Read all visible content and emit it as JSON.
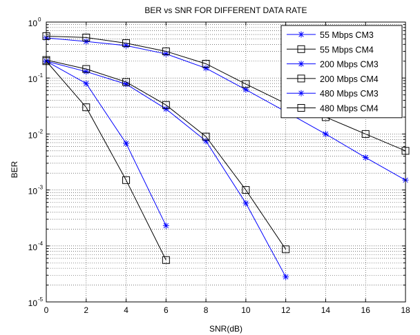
{
  "chart_data": {
    "type": "line",
    "title": "BER vs SNR FOR DIFFERENT DATA RATE",
    "xlabel": "SNR(dB)",
    "ylabel": "BER",
    "xlim": [
      0,
      18
    ],
    "ylim": [
      1e-05,
      1
    ],
    "yscale": "log",
    "grid": true,
    "legend_position": "top-right",
    "x_ticks": [
      0,
      2,
      4,
      6,
      8,
      10,
      12,
      14,
      16,
      18
    ],
    "y_ticks": [
      {
        "base": "10",
        "exp": "-5",
        "value": 1e-05
      },
      {
        "base": "10",
        "exp": "-4",
        "value": 0.0001
      },
      {
        "base": "10",
        "exp": "-3",
        "value": 0.001
      },
      {
        "base": "10",
        "exp": "-2",
        "value": 0.01
      },
      {
        "base": "10",
        "exp": "-1",
        "value": 0.1
      },
      {
        "base": "10",
        "exp": "0",
        "value": 1
      }
    ],
    "series": [
      {
        "name": "55 Mbps CM3",
        "color": "#0000ff",
        "marker": "star",
        "x": [
          0,
          2,
          4,
          6,
          8,
          10,
          12,
          14,
          16,
          18
        ],
        "y": [
          0.52,
          0.45,
          0.38,
          0.27,
          0.15,
          0.062,
          0.025,
          0.01,
          0.0038,
          0.0015
        ]
      },
      {
        "name": "55 Mbps CM4",
        "color": "#000000",
        "marker": "square",
        "x": [
          0,
          2,
          4,
          6,
          8,
          10,
          12,
          14,
          16,
          18
        ],
        "y": [
          0.56,
          0.53,
          0.42,
          0.3,
          0.18,
          0.078,
          0.035,
          0.02,
          0.01,
          0.005
        ]
      },
      {
        "name": "200 Mbps CM3",
        "color": "#0000ff",
        "marker": "star",
        "x": [
          0,
          2,
          4,
          6,
          8,
          10,
          12
        ],
        "y": [
          0.2,
          0.13,
          0.078,
          0.028,
          0.0075,
          0.00058,
          2.8e-05
        ]
      },
      {
        "name": "200 Mbps CM4",
        "color": "#000000",
        "marker": "square",
        "x": [
          0,
          2,
          4,
          6,
          8,
          10,
          12
        ],
        "y": [
          0.21,
          0.145,
          0.085,
          0.033,
          0.009,
          0.001,
          8.7e-05
        ]
      },
      {
        "name": "480 Mbps CM3",
        "color": "#0000ff",
        "marker": "star",
        "x": [
          0,
          2,
          4,
          6
        ],
        "y": [
          0.2,
          0.08,
          0.0068,
          0.00023
        ]
      },
      {
        "name": "480 Mbps CM4",
        "color": "#000000",
        "marker": "square",
        "x": [
          0,
          2,
          4,
          6
        ],
        "y": [
          0.2,
          0.03,
          0.0015,
          5.6e-05
        ]
      }
    ]
  }
}
